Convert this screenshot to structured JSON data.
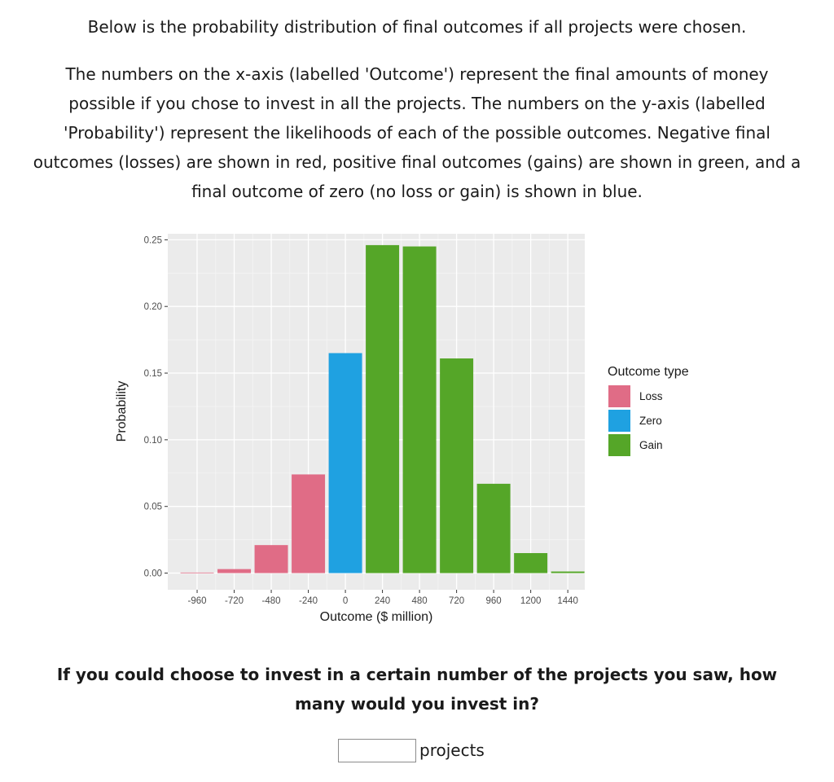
{
  "intro": "Below is the probability distribution of final outcomes if all projects were chosen.",
  "description": "The numbers on the x-axis (labelled 'Outcome') represent the final amounts of money possible if you chose to invest in all the projects. The numbers on the y-axis (labelled 'Probability') represent the likelihoods of each of the possible outcomes. Negative final outcomes (losses) are shown in red, positive final outcomes (gains) are shown in green, and a final outcome of zero (no loss or gain) is shown in blue.",
  "question": "If you could choose to invest in a certain number of the projects you saw, how many would you invest in?",
  "answer": {
    "value": "",
    "placeholder": "",
    "unit": "projects"
  },
  "chart_data": {
    "type": "bar",
    "xlabel": "Outcome ($ million)",
    "ylabel": "Probability",
    "x_ticks": [
      -960,
      -720,
      -480,
      -240,
      0,
      240,
      480,
      720,
      960,
      1200,
      1440
    ],
    "y_ticks": [
      0.0,
      0.05,
      0.1,
      0.15,
      0.2,
      0.25
    ],
    "y_tick_labels": [
      "0.00",
      "0.05",
      "0.10",
      "0.15",
      "0.20",
      "0.25"
    ],
    "xlim": [
      -1150,
      1550
    ],
    "ylim": [
      -0.0125,
      0.2545
    ],
    "bar_width": 216,
    "grid": true,
    "legend_position": "right",
    "legend": {
      "title": "Outcome type",
      "items": [
        {
          "name": "Loss",
          "color": "#e06c86"
        },
        {
          "name": "Zero",
          "color": "#1fa1e1"
        },
        {
          "name": "Gain",
          "color": "#55a628"
        }
      ]
    },
    "bars": [
      {
        "x": -960,
        "y": 0.0004,
        "type": "Loss"
      },
      {
        "x": -720,
        "y": 0.003,
        "type": "Loss"
      },
      {
        "x": -480,
        "y": 0.021,
        "type": "Loss"
      },
      {
        "x": -240,
        "y": 0.074,
        "type": "Loss"
      },
      {
        "x": 0,
        "y": 0.165,
        "type": "Zero"
      },
      {
        "x": 240,
        "y": 0.246,
        "type": "Gain"
      },
      {
        "x": 480,
        "y": 0.245,
        "type": "Gain"
      },
      {
        "x": 720,
        "y": 0.161,
        "type": "Gain"
      },
      {
        "x": 960,
        "y": 0.067,
        "type": "Gain"
      },
      {
        "x": 1200,
        "y": 0.015,
        "type": "Gain"
      },
      {
        "x": 1440,
        "y": 0.0012,
        "type": "Gain"
      }
    ]
  }
}
